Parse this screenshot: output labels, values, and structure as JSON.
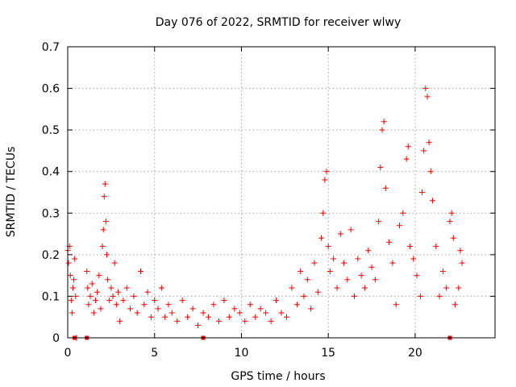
{
  "chart_data": {
    "type": "scatter",
    "title": "Day 076 of 2022, SRMTID for receiver wlwy",
    "xlabel": "GPS time / hours",
    "ylabel": "SRMTID / TECUs",
    "xlim": [
      0,
      24.6
    ],
    "ylim": [
      0,
      0.7
    ],
    "xticks": [
      0,
      5,
      10,
      15,
      20
    ],
    "xtick_labels": [
      "0",
      "5",
      "10",
      "15",
      "20"
    ],
    "yticks": [
      0,
      0.1,
      0.2,
      0.3,
      0.4,
      0.5,
      0.6,
      0.7
    ],
    "ytick_labels": [
      "0",
      "0.1",
      "0.2",
      "0.3",
      "0.4",
      "0.5",
      "0.6",
      "0.7"
    ],
    "grid": true,
    "marker": "+",
    "color": "#ee0000",
    "series": [
      {
        "name": "SRMTID",
        "x": [
          0.0,
          0.05,
          0.1,
          0.15,
          0.2,
          0.25,
          0.3,
          0.35,
          0.4,
          0.45,
          0.5,
          1.1,
          1.15,
          1.2,
          1.3,
          1.4,
          1.5,
          1.6,
          1.7,
          1.8,
          1.9,
          2.0,
          2.05,
          2.1,
          2.15,
          2.2,
          2.25,
          2.3,
          2.4,
          2.5,
          2.6,
          2.7,
          2.8,
          2.9,
          3.0,
          3.2,
          3.4,
          3.6,
          3.8,
          4.0,
          4.2,
          4.4,
          4.6,
          4.8,
          5.0,
          5.2,
          5.4,
          5.6,
          5.8,
          6.0,
          6.3,
          6.6,
          6.9,
          7.2,
          7.5,
          7.8,
          8.1,
          8.4,
          8.7,
          9.0,
          9.3,
          9.6,
          9.9,
          10.2,
          10.5,
          10.8,
          11.1,
          11.4,
          11.7,
          12.0,
          12.3,
          12.6,
          12.9,
          13.2,
          13.4,
          13.6,
          13.8,
          14.0,
          14.2,
          14.4,
          14.6,
          14.7,
          14.8,
          14.9,
          15.0,
          15.1,
          15.3,
          15.5,
          15.7,
          15.9,
          16.1,
          16.3,
          16.5,
          16.7,
          16.9,
          17.1,
          17.3,
          17.5,
          17.7,
          17.9,
          18.0,
          18.1,
          18.2,
          18.3,
          18.5,
          18.7,
          18.9,
          19.1,
          19.3,
          19.5,
          19.6,
          19.7,
          19.9,
          20.1,
          20.3,
          20.4,
          20.5,
          20.6,
          20.7,
          20.8,
          20.9,
          21.0,
          21.2,
          21.4,
          21.6,
          21.8,
          22.0,
          22.1,
          22.2,
          22.3,
          22.5,
          22.6,
          22.7
        ],
        "y": [
          0.21,
          0.18,
          0.22,
          0.15,
          0.09,
          0.06,
          0.12,
          0.14,
          0.19,
          0.1,
          0.0,
          0.16,
          0.12,
          0.08,
          0.1,
          0.13,
          0.06,
          0.09,
          0.11,
          0.15,
          0.07,
          0.22,
          0.26,
          0.34,
          0.37,
          0.28,
          0.2,
          0.14,
          0.09,
          0.12,
          0.1,
          0.18,
          0.08,
          0.11,
          0.04,
          0.09,
          0.12,
          0.07,
          0.1,
          0.06,
          0.16,
          0.08,
          0.11,
          0.05,
          0.09,
          0.07,
          0.12,
          0.05,
          0.08,
          0.06,
          0.04,
          0.09,
          0.05,
          0.07,
          0.03,
          0.06,
          0.05,
          0.08,
          0.04,
          0.09,
          0.05,
          0.07,
          0.06,
          0.04,
          0.08,
          0.05,
          0.07,
          0.06,
          0.04,
          0.09,
          0.06,
          0.05,
          0.12,
          0.08,
          0.16,
          0.1,
          0.14,
          0.07,
          0.18,
          0.11,
          0.24,
          0.3,
          0.38,
          0.4,
          0.22,
          0.16,
          0.19,
          0.12,
          0.25,
          0.18,
          0.14,
          0.26,
          0.1,
          0.19,
          0.15,
          0.12,
          0.21,
          0.17,
          0.14,
          0.28,
          0.41,
          0.5,
          0.52,
          0.36,
          0.23,
          0.18,
          0.08,
          0.27,
          0.3,
          0.43,
          0.46,
          0.22,
          0.19,
          0.15,
          0.1,
          0.35,
          0.45,
          0.6,
          0.58,
          0.47,
          0.4,
          0.33,
          0.22,
          0.1,
          0.16,
          0.12,
          0.28,
          0.3,
          0.24,
          0.08,
          0.12,
          0.21,
          0.18
        ],
        "gap_markers_x": [
          0.4,
          1.1,
          7.8,
          22.0
        ]
      }
    ]
  }
}
